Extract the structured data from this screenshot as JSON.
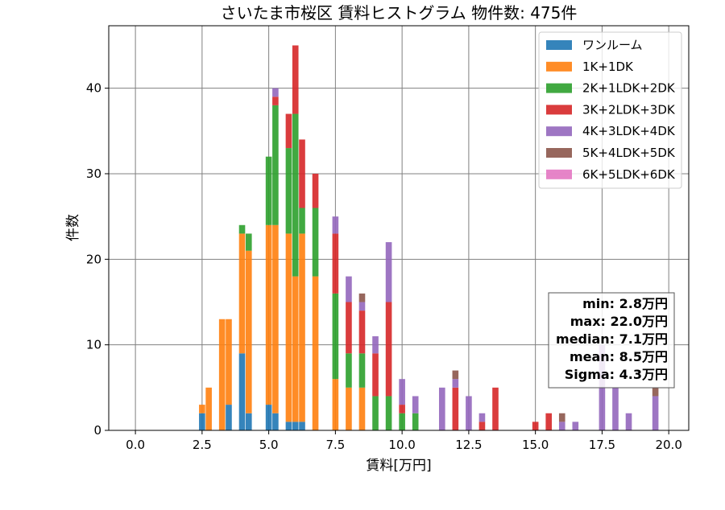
{
  "chart_data": {
    "type": "bar",
    "stacked": true,
    "title": "さいたま市桜区 賃料ヒストグラム 物件数: 475件",
    "xlabel": "賃料[万円]",
    "ylabel": "件数",
    "xlim": [
      -1.0,
      20.75
    ],
    "ylim": [
      0,
      47.3
    ],
    "xticks": [
      "0.0",
      "2.5",
      "5.0",
      "7.5",
      "10.0",
      "12.5",
      "15.0",
      "17.5",
      "20.0"
    ],
    "xtick_values": [
      0,
      2.5,
      5,
      7.5,
      10,
      12.5,
      15,
      17.5,
      20
    ],
    "yticks": [
      "0",
      "10",
      "20",
      "30",
      "40"
    ],
    "ytick_values": [
      0,
      10,
      20,
      30,
      40
    ],
    "grid": true,
    "legend_position": "top-right",
    "bin_width": 0.25,
    "x": [
      2.5,
      2.75,
      3.25,
      3.5,
      4.0,
      4.25,
      4.5,
      5.0,
      5.25,
      5.5,
      5.75,
      6.0,
      6.25,
      6.5,
      6.75,
      7.0,
      7.25,
      7.5,
      7.75,
      8.0,
      8.25,
      8.5,
      8.75,
      9.0,
      9.25,
      9.5,
      9.75,
      10.0,
      10.25,
      10.5,
      11.0,
      11.5,
      12.0,
      12.25,
      12.5,
      13.0,
      13.5,
      14.0,
      15.0,
      15.5,
      16.0,
      16.5,
      17.5,
      18.0,
      18.5,
      19.0,
      19.5
    ],
    "series": [
      {
        "name": "ワンルーム",
        "color": "#1f77b4",
        "values": [
          2,
          0,
          0,
          3,
          9,
          2,
          0,
          3,
          2,
          0,
          1,
          1,
          1,
          0,
          0,
          0,
          0,
          0,
          0,
          0,
          0,
          0,
          0,
          0,
          0,
          0,
          0,
          0,
          0,
          0,
          0,
          0,
          0,
          0,
          0,
          0,
          0,
          0,
          0,
          0,
          0,
          0,
          0,
          0,
          0,
          0,
          0
        ]
      },
      {
        "name": "1K+1DK",
        "color": "#ff7f0e",
        "values": [
          1,
          5,
          13,
          10,
          14,
          19,
          0,
          21,
          22,
          0,
          22,
          17,
          22,
          0,
          18,
          0,
          0,
          6,
          0,
          5,
          0,
          5,
          0,
          0,
          0,
          0,
          0,
          0,
          0,
          0,
          0,
          0,
          0,
          0,
          0,
          0,
          0,
          0,
          0,
          0,
          0,
          0,
          0,
          0,
          0,
          0,
          0
        ]
      },
      {
        "name": "2K+1LDK+2DK",
        "color": "#2ca02c",
        "values": [
          0,
          0,
          0,
          0,
          1,
          2,
          0,
          8,
          14,
          0,
          10,
          19,
          3,
          0,
          8,
          0,
          0,
          10,
          0,
          4,
          0,
          4,
          0,
          4,
          0,
          4,
          0,
          2,
          0,
          2,
          0,
          0,
          0,
          0,
          0,
          0,
          0,
          0,
          0,
          0,
          0,
          0,
          0,
          0,
          0,
          0,
          0
        ]
      },
      {
        "name": "3K+2LDK+3DK",
        "color": "#d62728",
        "values": [
          0,
          0,
          0,
          0,
          0,
          0,
          0,
          0,
          1,
          0,
          4,
          8,
          8,
          0,
          4,
          0,
          0,
          7,
          0,
          6,
          0,
          5,
          0,
          5,
          0,
          11,
          0,
          1,
          0,
          0,
          0,
          0,
          5,
          0,
          0,
          1,
          5,
          0,
          1,
          2,
          0,
          0,
          0,
          0,
          0,
          0,
          0
        ]
      },
      {
        "name": "4K+3LDK+4DK",
        "color": "#9467bd",
        "values": [
          0,
          0,
          0,
          0,
          0,
          0,
          0,
          0,
          1,
          0,
          0,
          0,
          0,
          0,
          0,
          0,
          0,
          2,
          0,
          3,
          0,
          1,
          0,
          2,
          0,
          7,
          0,
          3,
          0,
          2,
          0,
          5,
          1,
          0,
          4,
          1,
          0,
          0,
          0,
          0,
          1,
          1,
          10,
          5,
          2,
          0,
          4
        ]
      },
      {
        "name": "5K+4LDK+5DK",
        "color": "#8c564b",
        "values": [
          0,
          0,
          0,
          0,
          0,
          0,
          0,
          0,
          0,
          0,
          0,
          0,
          0,
          0,
          0,
          0,
          0,
          0,
          0,
          0,
          0,
          1,
          0,
          0,
          0,
          0,
          0,
          0,
          0,
          0,
          0,
          0,
          1,
          0,
          0,
          0,
          0,
          0,
          0,
          0,
          1,
          0,
          0,
          0,
          0,
          0,
          1
        ]
      },
      {
        "name": "6K+5LDK+6DK",
        "color": "#e377c2",
        "values": [
          0,
          0,
          0,
          0,
          0,
          0,
          0,
          0,
          0,
          0,
          0,
          0,
          0,
          0,
          0,
          0,
          0,
          0,
          0,
          0,
          0,
          0,
          0,
          0,
          0,
          0,
          0,
          0,
          0,
          0,
          0,
          0,
          0,
          0,
          0,
          0,
          0,
          0,
          0,
          0,
          0,
          0,
          0,
          0,
          0,
          0,
          0
        ]
      }
    ],
    "stats": {
      "min": "min: 2.8万円",
      "max": "max: 22.0万円",
      "median": "median: 7.1万円",
      "mean": "mean: 8.5万円",
      "sigma": "Sigma: 4.3万円"
    }
  }
}
